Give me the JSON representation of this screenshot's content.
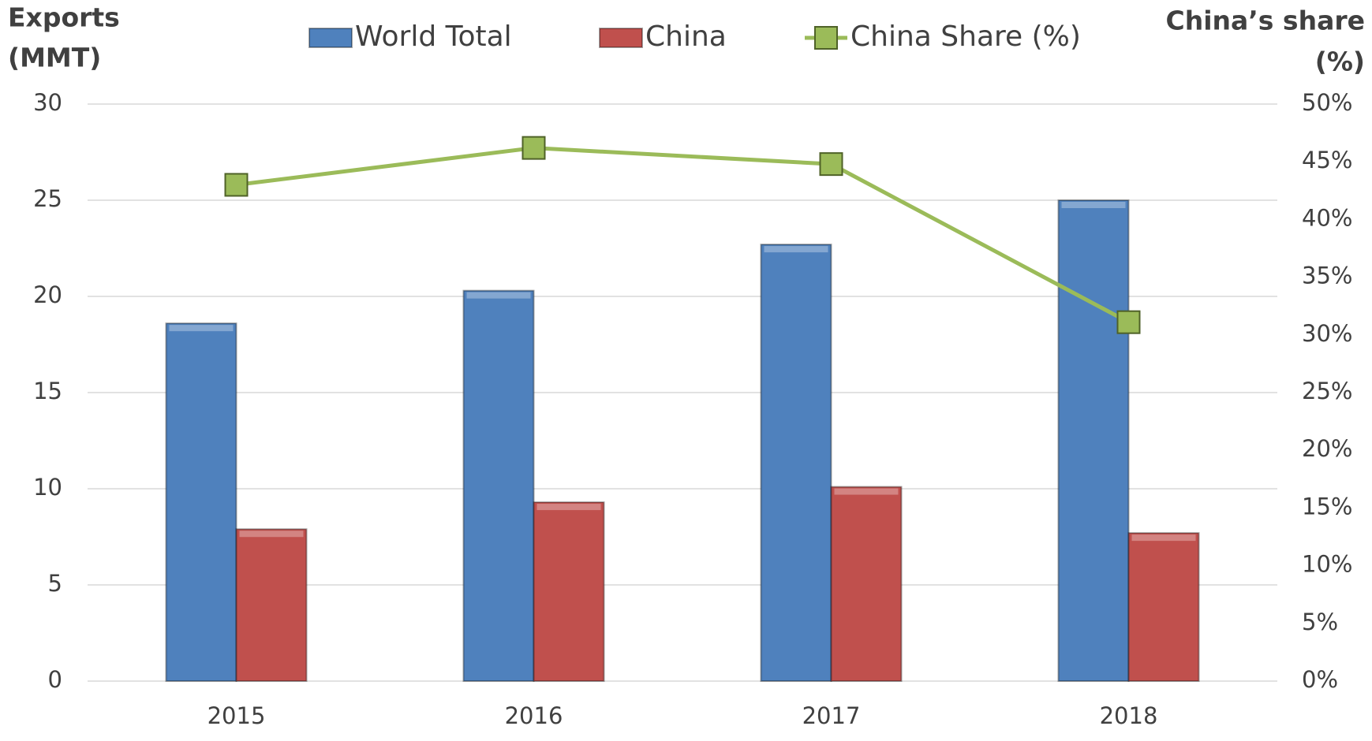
{
  "chart_data": {
    "type": "bar",
    "y_label": [
      "Exports",
      "(MMT)"
    ],
    "y2_label": [
      "China’s share",
      "(%)"
    ],
    "categories": [
      "2015",
      "2016",
      "2017",
      "2018"
    ],
    "series": [
      {
        "name": "World Total",
        "type": "bar",
        "color": "#4f81bd",
        "values": [
          18.6,
          20.3,
          22.7,
          25.0
        ]
      },
      {
        "name": "China",
        "type": "bar",
        "color": "#c0504d",
        "values": [
          7.9,
          9.3,
          10.1,
          7.7
        ]
      },
      {
        "name": "China Share (%)",
        "type": "line",
        "axis": "y2",
        "color": "#9bbb59",
        "values": [
          43.0,
          46.2,
          44.8,
          31.1
        ]
      }
    ],
    "ylim": [
      0,
      30
    ],
    "yticks": [
      0,
      5,
      10,
      15,
      20,
      25,
      30
    ],
    "y2lim": [
      0,
      50
    ],
    "y2ticks": [
      {
        "value": 0,
        "label": "0%"
      },
      {
        "value": 5,
        "label": "5%"
      },
      {
        "value": 10,
        "label": "10%"
      },
      {
        "value": 15,
        "label": "15%"
      },
      {
        "value": 20,
        "label": "20%"
      },
      {
        "value": 25,
        "label": "25%"
      },
      {
        "value": 30,
        "label": "30%"
      },
      {
        "value": 35,
        "label": "35%"
      },
      {
        "value": 40,
        "label": "40%"
      },
      {
        "value": 45,
        "label": "45%"
      },
      {
        "value": 50,
        "label": "50%"
      }
    ],
    "grid": true,
    "legend": "top"
  }
}
